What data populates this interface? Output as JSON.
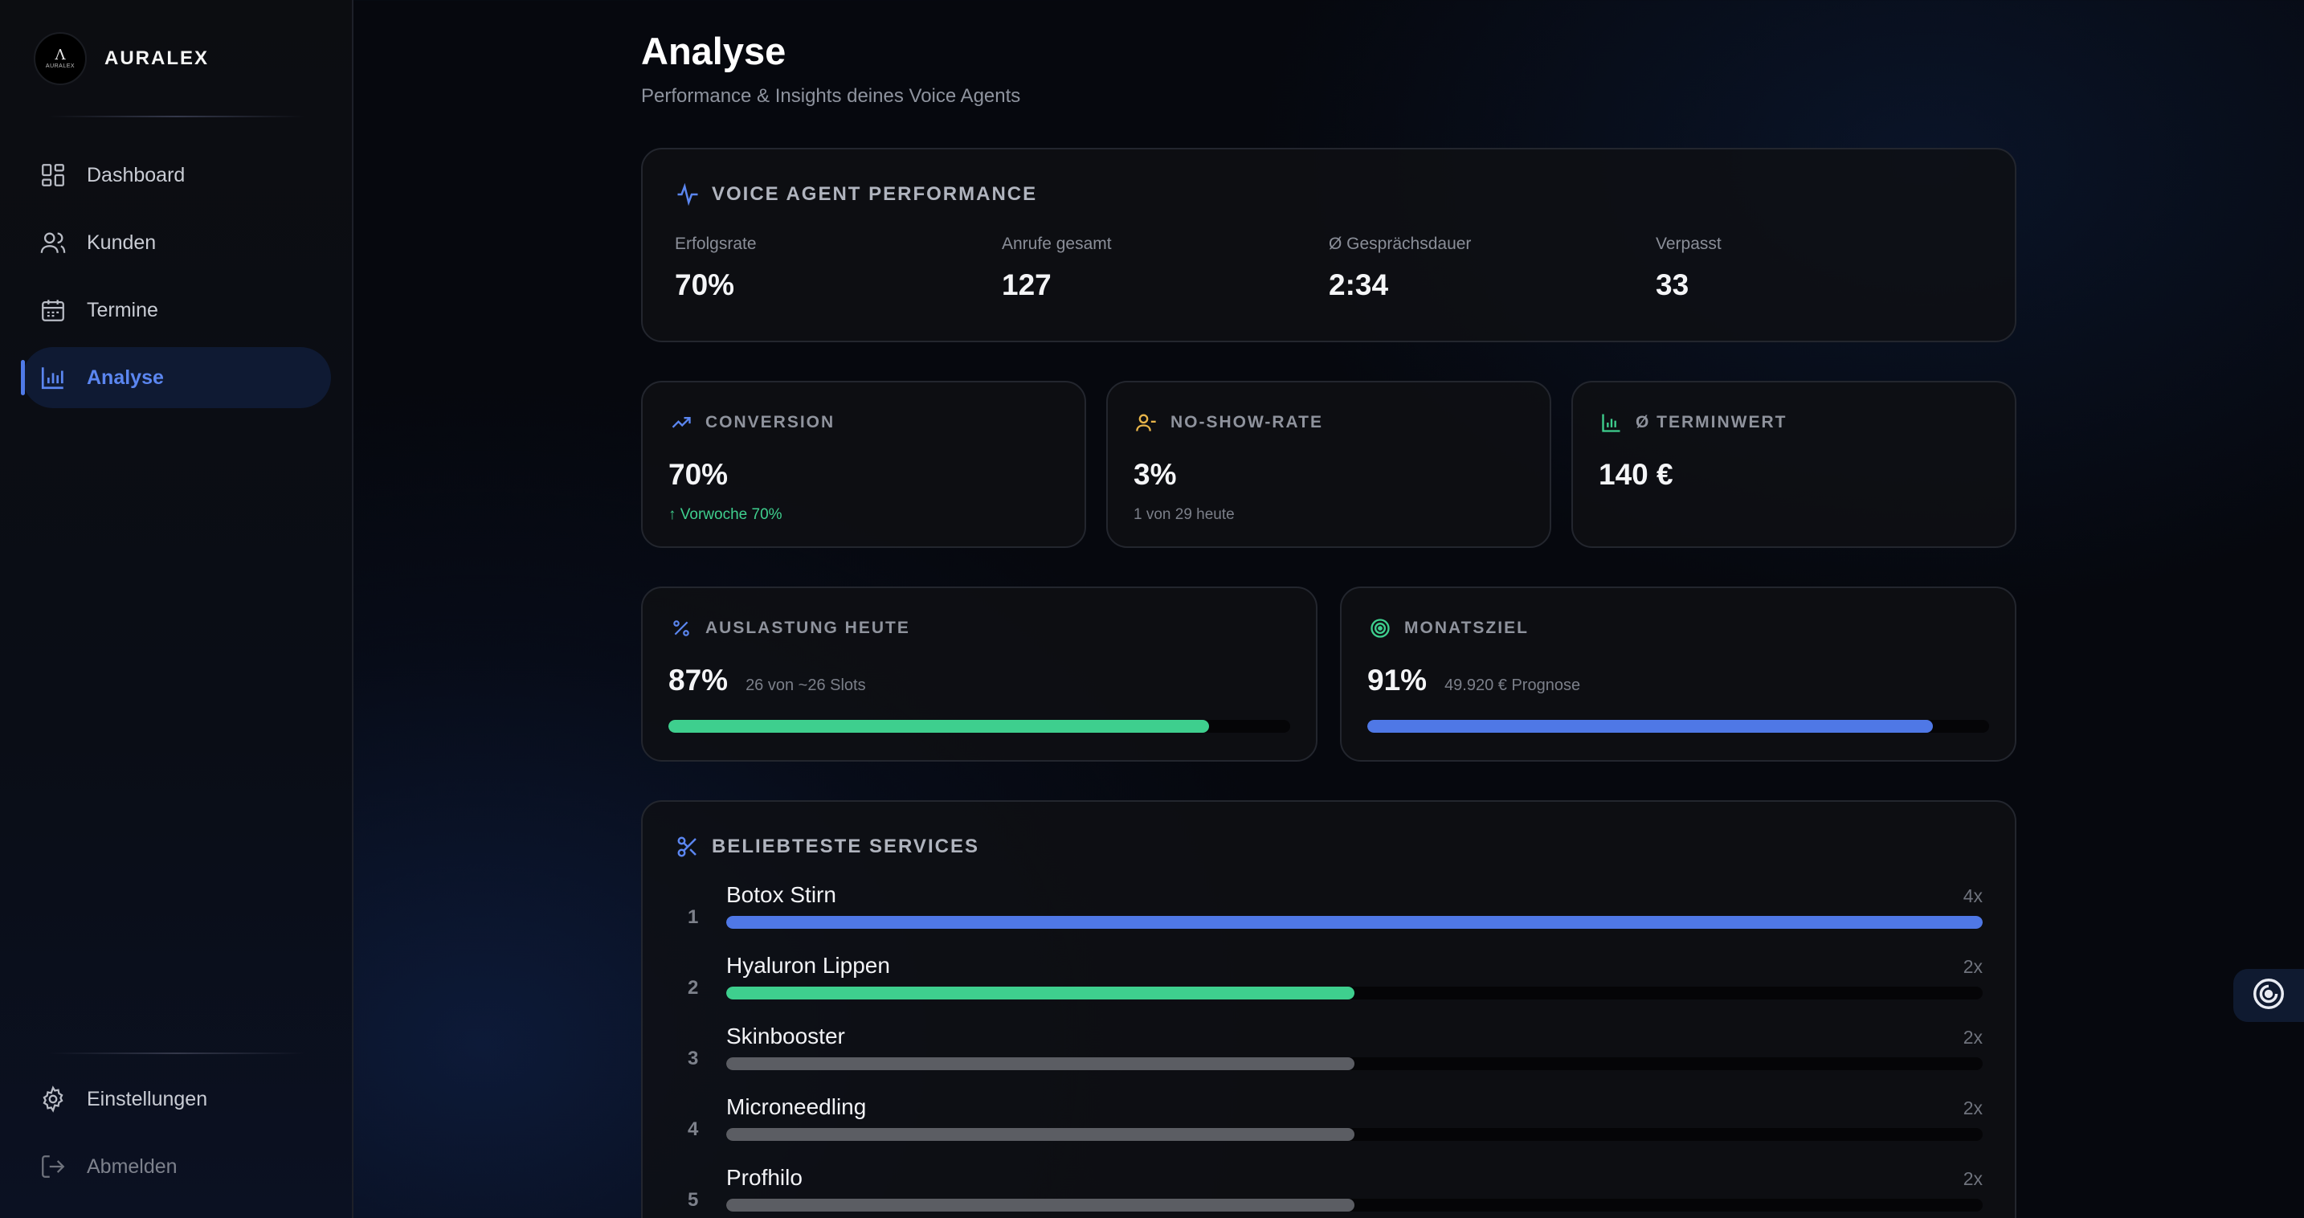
{
  "brand": {
    "logo_glyph": "Λ",
    "logo_text": "AURALEX",
    "name": "AURALEX"
  },
  "sidebar": {
    "items": [
      {
        "label": "Dashboard",
        "icon": "dashboard-grid-icon",
        "active": false
      },
      {
        "label": "Kunden",
        "icon": "users-icon",
        "active": false
      },
      {
        "label": "Termine",
        "icon": "calendar-icon",
        "active": false
      },
      {
        "label": "Analyse",
        "icon": "bar-chart-icon",
        "active": true
      }
    ],
    "bottom": [
      {
        "label": "Einstellungen",
        "icon": "gear-icon"
      },
      {
        "label": "Abmelden",
        "icon": "logout-icon"
      }
    ]
  },
  "header": {
    "title": "Analyse",
    "subtitle": "Performance & Insights deines Voice Agents"
  },
  "performance": {
    "title": "VOICE AGENT PERFORMANCE",
    "stats": [
      {
        "label": "Erfolgsrate",
        "value": "70%"
      },
      {
        "label": "Anrufe gesamt",
        "value": "127"
      },
      {
        "label": "Ø Gesprächsdauer",
        "value": "2:34"
      },
      {
        "label": "Verpasst",
        "value": "33"
      }
    ]
  },
  "kpis": [
    {
      "title": "CONVERSION",
      "value": "70%",
      "sub": "↑ Vorwoche 70%",
      "icon": "trending-up-icon"
    },
    {
      "title": "NO-SHOW-RATE",
      "value": "3%",
      "sub": "1 von 29 heute",
      "icon": "user-minus-icon"
    },
    {
      "title": "Ø TERMINWERT",
      "value": "140 €",
      "sub": "",
      "icon": "bar-chart-icon"
    }
  ],
  "utilization": {
    "title": "AUSLASTUNG HEUTE",
    "value": "87%",
    "sub": "26 von ~26 Slots",
    "progress": 0.87,
    "color": "#3ecf8e"
  },
  "goal": {
    "title": "MONATSZIEL",
    "value": "91%",
    "sub": "49.920 € Prognose",
    "progress": 0.91,
    "color": "#4f78e6"
  },
  "services": {
    "title": "BELIEBTESTE SERVICES",
    "items": [
      {
        "rank": "1",
        "name": "Botox Stirn",
        "count": "4x",
        "share": 1.0,
        "color": "#4f78e6"
      },
      {
        "rank": "2",
        "name": "Hyaluron Lippen",
        "count": "2x",
        "share": 0.5,
        "color": "#3ecf8e"
      },
      {
        "rank": "3",
        "name": "Skinbooster",
        "count": "2x",
        "share": 0.5,
        "color": "#5b5d63"
      },
      {
        "rank": "4",
        "name": "Microneedling",
        "count": "2x",
        "share": 0.5,
        "color": "#5b5d63"
      },
      {
        "rank": "5",
        "name": "Profhilo",
        "count": "2x",
        "share": 0.5,
        "color": "#5b5d63"
      }
    ]
  },
  "floating_button": {
    "icon": "voice-agent-icon"
  }
}
